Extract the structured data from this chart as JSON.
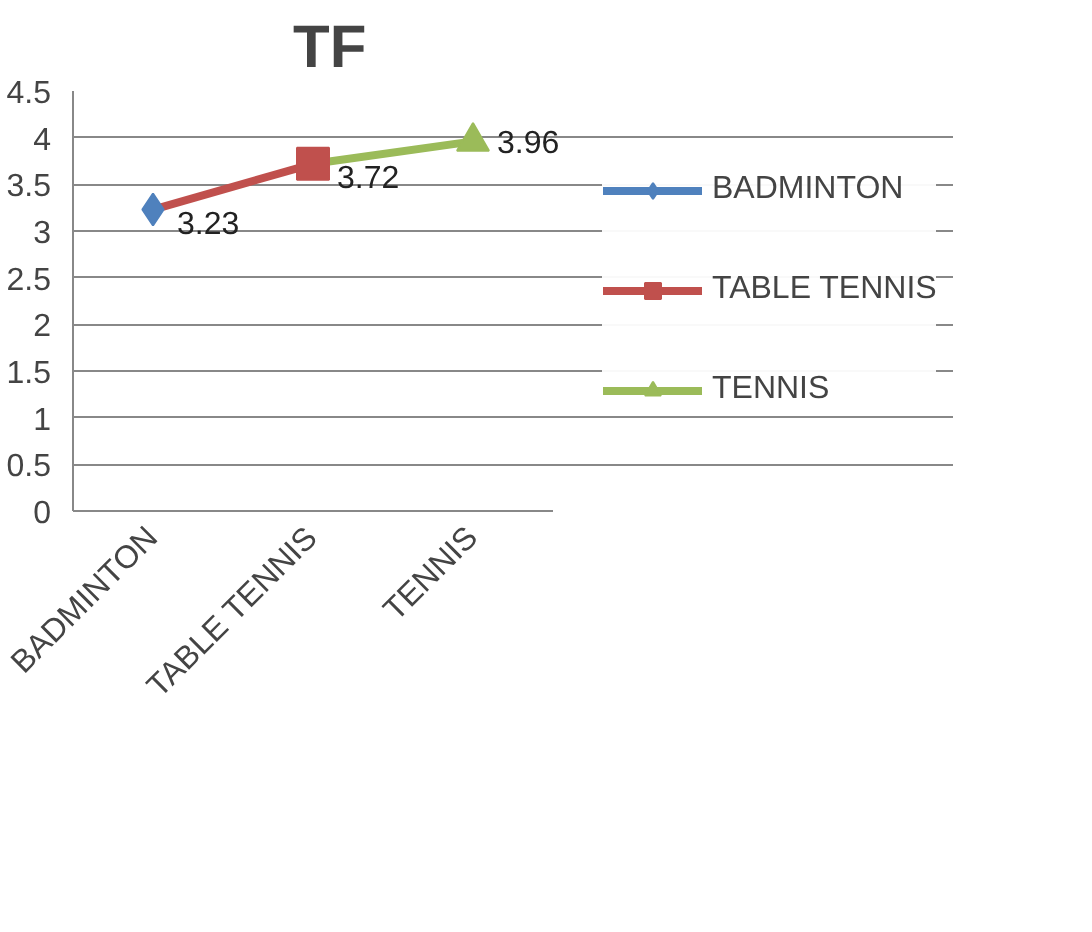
{
  "chart_data": {
    "type": "line",
    "title": "TF",
    "categories": [
      "BADMINTON",
      "TABLE TENNIS",
      "TENNIS"
    ],
    "series": [
      {
        "name": "BADMINTON",
        "color": "#4f81bd",
        "marker": "diamond",
        "values": [
          3.23,
          null,
          null
        ],
        "value_labels": [
          "3.23",
          null,
          null
        ]
      },
      {
        "name": "TABLE TENNIS",
        "color": "#c0504d",
        "marker": "square",
        "values": [
          3.23,
          3.72,
          null
        ],
        "value_labels": [
          null,
          "3.72",
          null
        ]
      },
      {
        "name": "TENNIS",
        "color": "#9bbb59",
        "marker": "triangle",
        "values": [
          null,
          3.72,
          3.96
        ],
        "value_labels": [
          null,
          null,
          "3.96"
        ]
      }
    ],
    "ylim": [
      0,
      4.5
    ],
    "yticks": [
      0,
      0.5,
      1,
      1.5,
      2,
      2.5,
      3,
      3.5,
      4,
      4.5
    ],
    "grid": "y",
    "legend": "right",
    "line_style": "solid"
  }
}
